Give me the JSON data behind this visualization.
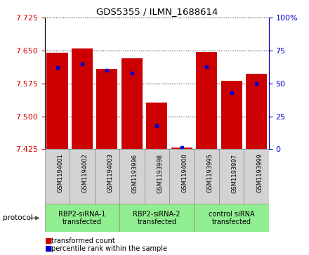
{
  "title": "GDS5355 / ILMN_1688614",
  "samples": [
    "GSM1194001",
    "GSM1194002",
    "GSM1194003",
    "GSM1193996",
    "GSM1193998",
    "GSM1194000",
    "GSM1193995",
    "GSM1193997",
    "GSM1193999"
  ],
  "red_values": [
    7.645,
    7.655,
    7.608,
    7.633,
    7.532,
    7.428,
    7.647,
    7.582,
    7.598
  ],
  "blue_values": [
    62,
    65,
    60,
    58,
    18,
    1,
    63,
    43,
    50
  ],
  "ylim_left": [
    7.425,
    7.725
  ],
  "ylim_right": [
    0,
    100
  ],
  "yticks_left": [
    7.425,
    7.5,
    7.575,
    7.65,
    7.725
  ],
  "yticks_right": [
    0,
    25,
    50,
    75,
    100
  ],
  "ytick_labels_right": [
    "0",
    "25",
    "50",
    "75",
    "100%"
  ],
  "groups": [
    {
      "label": "RBP2-siRNA-1\ntransfected",
      "indices": [
        0,
        1,
        2
      ],
      "color": "#90EE90"
    },
    {
      "label": "RBP2-siRNA-2\ntransfected",
      "indices": [
        3,
        4,
        5
      ],
      "color": "#90EE90"
    },
    {
      "label": "control siRNA\ntransfected",
      "indices": [
        6,
        7,
        8
      ],
      "color": "#90EE90"
    }
  ],
  "protocol_label": "protocol",
  "bar_color": "#CC0000",
  "blue_color": "#0000CC",
  "axis_color_left": "#CC0000",
  "axis_color_right": "#0000CC",
  "bar_width": 0.85,
  "sample_bg_color": "#D3D3D3",
  "plot_bg_color": "#FFFFFF",
  "grid_color": "#000000",
  "legend_items": [
    {
      "color": "#CC0000",
      "label": "transformed count"
    },
    {
      "color": "#0000CC",
      "label": "percentile rank within the sample"
    }
  ]
}
